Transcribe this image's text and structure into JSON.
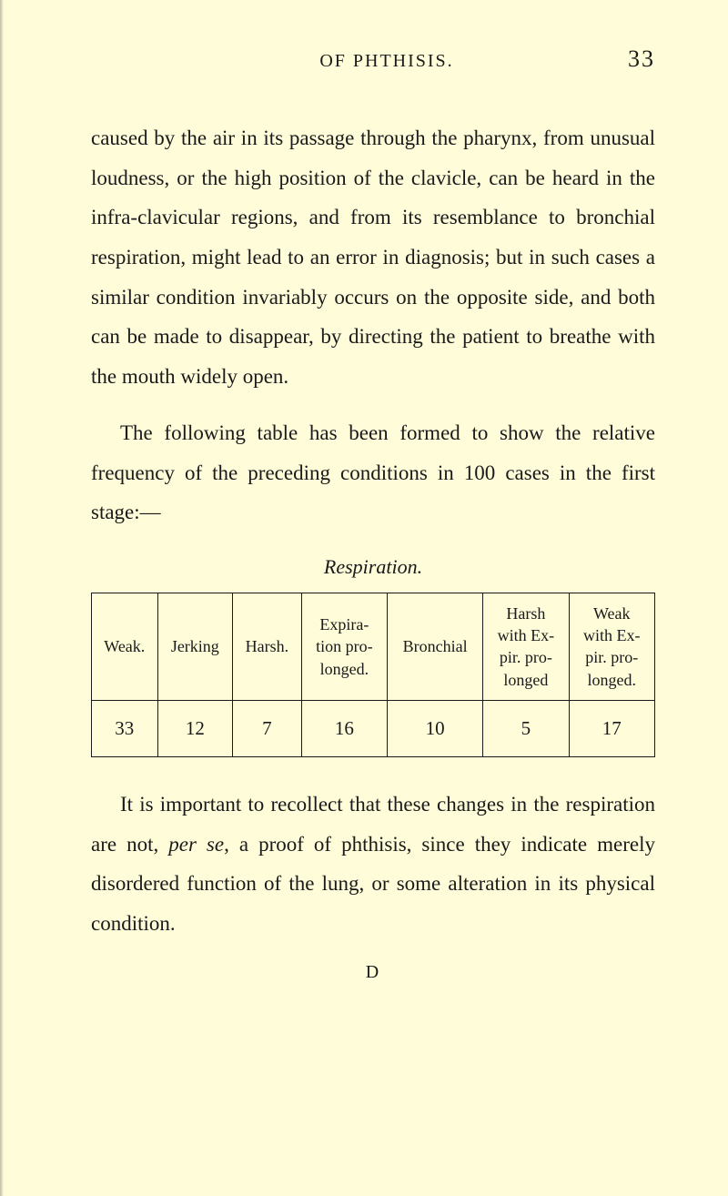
{
  "header": {
    "running_title": "OF PHTHISIS.",
    "page_number": "33"
  },
  "paragraphs": {
    "p1": "caused by the air in its passage through the pharynx, from unusual loudness, or the high position of the clavicle, can be heard in the infra-clavicular regions, and from its resemblance to bronchial respiration, might lead to an error in diagnosis; but in such cases a similar condition invariably occurs on the opposite side, and both can be made to disappear, by directing the patient to breathe with the mouth widely open.",
    "p2": "The following table has been formed to show the relative frequency of the preceding conditions in 100 cases in the first stage:—",
    "p3_pre": "It is important to recollect that these changes in the respiration are not, ",
    "p3_em": "per se",
    "p3_post": ", a proof of phthisis, since they indicate merely disordered function of the lung, or some alteration in its physical condition."
  },
  "table": {
    "title": "Respiration.",
    "columns": [
      "Weak.",
      "Jerking",
      "Harsh.",
      "Expira-\ntion pro-\nlonged.",
      "Bronchial",
      "Harsh\nwith Ex-\npir. pro-\nlonged",
      "Weak\nwith Ex-\npir. pro-\nlonged."
    ],
    "row": [
      "33",
      "12",
      "7",
      "16",
      "10",
      "5",
      "17"
    ]
  },
  "footer": {
    "signature": "D"
  },
  "style": {
    "background_color": "#fffcd9",
    "text_color": "#1a1a1a",
    "body_fontsize": 23,
    "header_fontsize": 20,
    "table_fontsize": 18,
    "border_color": "#1a1a1a"
  }
}
